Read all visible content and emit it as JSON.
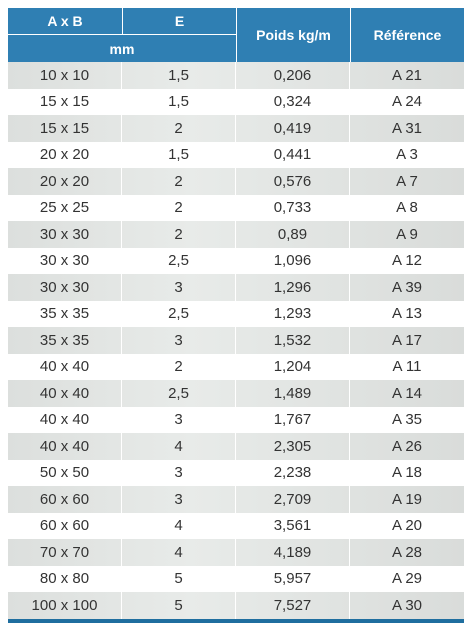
{
  "header": {
    "col_ab": "A x B",
    "col_e": "E",
    "unit": "mm",
    "col_poids": "Poids kg/m",
    "col_ref": "Référence"
  },
  "rows": [
    [
      "10 x 10",
      "1,5",
      "0,206",
      "A 21"
    ],
    [
      "15 x 15",
      "1,5",
      "0,324",
      "A 24"
    ],
    [
      "15 x 15",
      "2",
      "0,419",
      "A 31"
    ],
    [
      "20 x 20",
      "1,5",
      "0,441",
      "A 3"
    ],
    [
      "20 x 20",
      "2",
      "0,576",
      "A 7"
    ],
    [
      "25 x 25",
      "2",
      "0,733",
      "A 8"
    ],
    [
      "30 x 30",
      "2",
      "0,89",
      "A 9"
    ],
    [
      "30 x 30",
      "2,5",
      "1,096",
      "A 12"
    ],
    [
      "30 x 30",
      "3",
      "1,296",
      "A 39"
    ],
    [
      "35 x 35",
      "2,5",
      "1,293",
      "A 13"
    ],
    [
      "35 x 35",
      "3",
      "1,532",
      "A 17"
    ],
    [
      "40 x 40",
      "2",
      "1,204",
      "A 11"
    ],
    [
      "40 x 40",
      "2,5",
      "1,489",
      "A 14"
    ],
    [
      "40 x 40",
      "3",
      "1,767",
      "A 35"
    ],
    [
      "40 x 40",
      "4",
      "2,305",
      "A 26"
    ],
    [
      "50 x 50",
      "3",
      "2,238",
      "A 18"
    ],
    [
      "60 x 60",
      "3",
      "2,709",
      "A 19"
    ],
    [
      "60 x 60",
      "4",
      "3,561",
      "A 20"
    ],
    [
      "70 x 70",
      "4",
      "4,189",
      "A 28"
    ],
    [
      "80 x 80",
      "5",
      "5,957",
      "A 29"
    ],
    [
      "100 x 100",
      "5",
      "7,527",
      "A 30"
    ]
  ]
}
